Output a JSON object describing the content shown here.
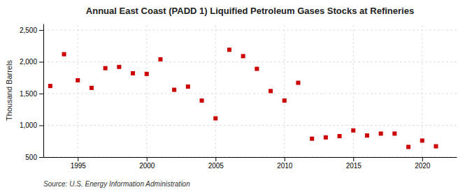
{
  "chart_data": {
    "type": "scatter",
    "title": "Annual East Coast (PADD 1) Liquified Petroleum Gases Stocks at Refineries",
    "ylabel": "Thousand Barrels",
    "source": "Source: U.S. Energy Information Administration",
    "color": "#cc0000",
    "marker": "square",
    "grid": true,
    "x": [
      1993,
      1994,
      1995,
      1996,
      1997,
      1998,
      1999,
      2000,
      2001,
      2002,
      2003,
      2004,
      2005,
      2006,
      2007,
      2008,
      2009,
      2010,
      2011,
      2012,
      2013,
      2014,
      2015,
      2016,
      2017,
      2018,
      2019,
      2020,
      2021
    ],
    "values": [
      1620,
      2120,
      1710,
      1590,
      1900,
      1920,
      1820,
      1810,
      2040,
      1560,
      1610,
      1390,
      1110,
      2190,
      2090,
      1890,
      1540,
      1390,
      1670,
      790,
      810,
      830,
      920,
      840,
      870,
      870,
      660,
      760,
      670
    ],
    "xlim": [
      1992.5,
      2022.5
    ],
    "xticks": [
      1995,
      2000,
      2005,
      2010,
      2015,
      2020
    ],
    "ylim": [
      500,
      2600
    ],
    "yticks": [
      500,
      {
        "value": 1000,
        "label": "1,000"
      },
      {
        "value": 1500,
        "label": "1,500"
      },
      {
        "value": 2000,
        "label": "2,000"
      },
      {
        "value": 2500,
        "label": "2,500"
      }
    ]
  }
}
